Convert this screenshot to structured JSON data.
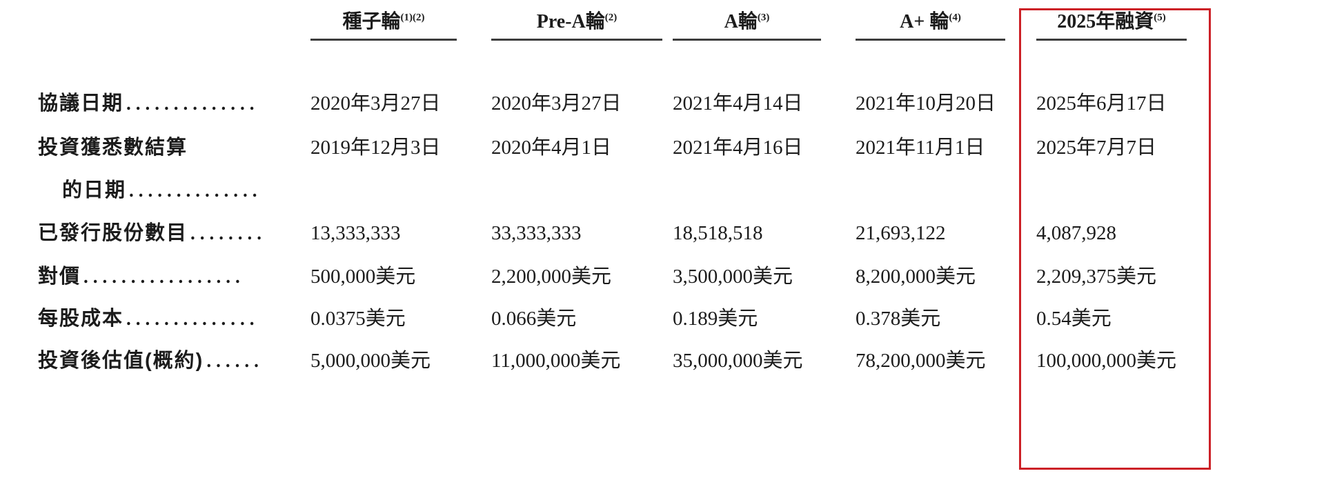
{
  "colors": {
    "highlight_border": "#cc2026",
    "rule": "#3c3c3c",
    "text": "#1c1c1c",
    "background": "#ffffff"
  },
  "table": {
    "columns": [
      {
        "label": "種子輪",
        "sup": "(1)(2)"
      },
      {
        "label": "Pre-A輪",
        "sup": "(2)"
      },
      {
        "label": "A輪",
        "sup": "(3)"
      },
      {
        "label": "A+ 輪",
        "sup": "(4)"
      },
      {
        "label": "2025年融資",
        "sup": "(5)",
        "highlighted": true
      }
    ],
    "rows": [
      {
        "label": "協議日期",
        "leader": "..............",
        "values": [
          "2020年3月27日",
          "2020年3月27日",
          "2021年4月14日",
          "2021年10月20日",
          "2025年6月17日"
        ]
      },
      {
        "label": "投資獲悉數結算",
        "label_line2": "的日期",
        "leader": "..............",
        "values": [
          "2019年12月3日",
          "2020年4月1日",
          "2021年4月16日",
          "2021年11月1日",
          "2025年7月7日"
        ]
      },
      {
        "label": "已發行股份數目",
        "leader": "........",
        "values": [
          "13,333,333",
          "33,333,333",
          "18,518,518",
          "21,693,122",
          "4,087,928"
        ]
      },
      {
        "label": "對價",
        "leader": ".................",
        "values": [
          "500,000美元",
          "2,200,000美元",
          "3,500,000美元",
          "8,200,000美元",
          "2,209,375美元"
        ]
      },
      {
        "label": "每股成本",
        "leader": "..............",
        "values": [
          "0.0375美元",
          "0.066美元",
          "0.189美元",
          "0.378美元",
          "0.54美元"
        ]
      },
      {
        "label": "投資後估值(概約)",
        "leader": "......",
        "values": [
          "5,000,000美元",
          "11,000,000美元",
          "35,000,000美元",
          "78,200,000美元",
          "100,000,000美元"
        ]
      }
    ]
  }
}
